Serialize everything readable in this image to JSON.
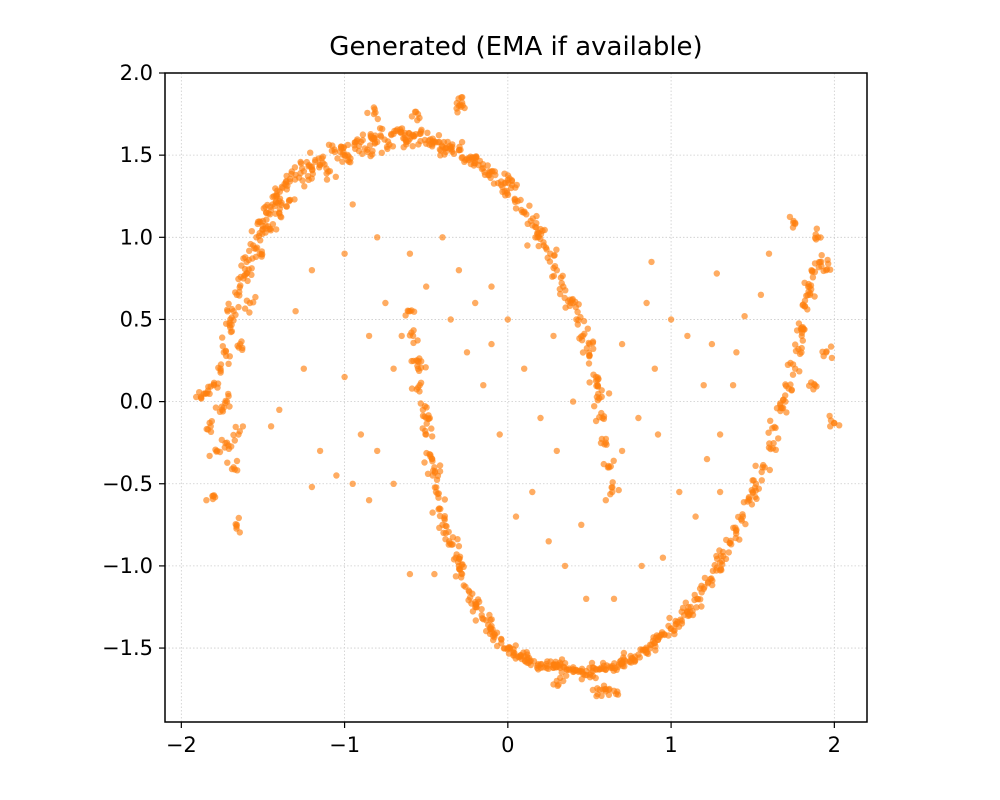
{
  "chart_data": {
    "type": "scatter",
    "title": "Generated (EMA if available)",
    "xlabel": "",
    "ylabel": "",
    "xlim": [
      -2.1,
      2.2
    ],
    "ylim": [
      -1.95,
      2.0
    ],
    "x_ticks": [
      -2,
      -1,
      0,
      1,
      2
    ],
    "x_tick_labels": [
      "−2",
      "−1",
      "0",
      "1",
      "2"
    ],
    "y_ticks": [
      -1.5,
      -1.0,
      -0.5,
      0.0,
      0.5,
      1.0,
      1.5,
      2.0
    ],
    "y_tick_labels": [
      "−1.5",
      "−1.0",
      "−0.5",
      "0.0",
      "0.5",
      "1.0",
      "1.5",
      "2.0"
    ],
    "grid": true,
    "legend": "none",
    "color": "#ff7f0e",
    "point_alpha": 0.65,
    "series": [
      {
        "points": [
          [
            -1.85,
            0.05
          ],
          [
            -1.82,
            -0.15
          ],
          [
            -1.8,
            0.1
          ],
          [
            -1.78,
            -0.3
          ],
          [
            -1.76,
            0.2
          ],
          [
            -1.74,
            0.3
          ],
          [
            -1.72,
            0.0
          ],
          [
            -1.7,
            0.45
          ],
          [
            -1.68,
            0.55
          ],
          [
            -1.66,
            0.65
          ],
          [
            -1.64,
            0.35
          ],
          [
            -1.62,
            0.75
          ],
          [
            -1.6,
            0.85
          ],
          [
            -1.58,
            0.6
          ],
          [
            -1.56,
            0.95
          ],
          [
            -1.54,
            1.0
          ],
          [
            -1.52,
            0.9
          ],
          [
            -1.5,
            1.1
          ],
          [
            -1.48,
            1.15
          ],
          [
            -1.46,
            1.05
          ],
          [
            -1.44,
            1.2
          ],
          [
            -1.42,
            1.25
          ],
          [
            -1.4,
            1.15
          ],
          [
            -1.38,
            1.3
          ],
          [
            -1.36,
            1.32
          ],
          [
            -1.34,
            1.22
          ],
          [
            -1.3,
            1.38
          ],
          [
            -1.26,
            1.42
          ],
          [
            -1.22,
            1.35
          ],
          [
            -1.18,
            1.46
          ],
          [
            -1.14,
            1.48
          ],
          [
            -1.1,
            1.4
          ],
          [
            -1.06,
            1.52
          ],
          [
            -1.02,
            1.55
          ],
          [
            -0.98,
            1.47
          ],
          [
            -0.94,
            1.56
          ],
          [
            -0.9,
            1.58
          ],
          [
            -0.86,
            1.52
          ],
          [
            -0.82,
            1.6
          ],
          [
            -0.78,
            1.62
          ],
          [
            -0.74,
            1.55
          ],
          [
            -0.7,
            1.63
          ],
          [
            -0.66,
            1.64
          ],
          [
            -0.62,
            1.58
          ],
          [
            -0.58,
            1.62
          ],
          [
            -0.54,
            1.63
          ],
          [
            -0.5,
            1.57
          ],
          [
            -0.46,
            1.6
          ],
          [
            -0.42,
            1.58
          ],
          [
            -0.38,
            1.52
          ],
          [
            -0.34,
            1.55
          ],
          [
            -0.3,
            1.53
          ],
          [
            -0.26,
            1.47
          ],
          [
            -0.22,
            1.48
          ],
          [
            -0.18,
            1.44
          ],
          [
            -0.14,
            1.38
          ],
          [
            -0.1,
            1.4
          ],
          [
            -0.06,
            1.33
          ],
          [
            -0.02,
            1.28
          ],
          [
            0.02,
            1.3
          ],
          [
            0.06,
            1.22
          ],
          [
            0.1,
            1.15
          ],
          [
            0.14,
            1.1
          ],
          [
            0.18,
            1.02
          ],
          [
            0.22,
            0.95
          ],
          [
            0.26,
            0.9
          ],
          [
            0.3,
            0.8
          ],
          [
            0.34,
            0.7
          ],
          [
            0.38,
            0.62
          ],
          [
            0.42,
            0.5
          ],
          [
            0.46,
            0.4
          ],
          [
            0.5,
            0.28
          ],
          [
            0.54,
            0.15
          ],
          [
            0.56,
            0.02
          ],
          [
            0.58,
            -0.1
          ],
          [
            0.6,
            -0.25
          ],
          [
            0.62,
            -0.4
          ],
          [
            0.64,
            -0.55
          ],
          [
            -1.7,
            0.5
          ],
          [
            -1.6,
            0.78
          ],
          [
            -1.5,
            1.05
          ],
          [
            -1.4,
            1.22
          ],
          [
            -1.2,
            1.43
          ],
          [
            -1.0,
            1.5
          ],
          [
            -0.8,
            1.58
          ],
          [
            -0.6,
            1.6
          ],
          [
            -0.4,
            1.55
          ],
          [
            -0.2,
            1.45
          ],
          [
            0.0,
            1.35
          ],
          [
            0.2,
            1.05
          ],
          [
            0.4,
            0.6
          ],
          [
            0.5,
            0.35
          ],
          [
            0.55,
            0.1
          ],
          [
            -1.75,
            -0.05
          ],
          [
            -1.72,
            -0.25
          ],
          [
            -1.68,
            -0.4
          ],
          [
            -1.65,
            -0.2
          ],
          [
            -1.66,
            -0.75
          ],
          [
            -1.8,
            -0.57
          ],
          [
            -1.88,
            0.03
          ],
          [
            -0.28,
            1.82
          ],
          [
            -0.3,
            1.8
          ],
          [
            -0.55,
            1.75
          ],
          [
            -0.82,
            1.75
          ]
        ]
      },
      {
        "points": [
          [
            -0.6,
            0.55
          ],
          [
            -0.58,
            0.4
          ],
          [
            -0.56,
            0.25
          ],
          [
            -0.54,
            0.1
          ],
          [
            -0.52,
            -0.05
          ],
          [
            -0.5,
            -0.2
          ],
          [
            -0.48,
            -0.32
          ],
          [
            -0.46,
            -0.45
          ],
          [
            -0.44,
            -0.55
          ],
          [
            -0.42,
            -0.65
          ],
          [
            -0.4,
            -0.75
          ],
          [
            -0.36,
            -0.85
          ],
          [
            -0.32,
            -0.95
          ],
          [
            -0.28,
            -1.05
          ],
          [
            -0.24,
            -1.15
          ],
          [
            -0.2,
            -1.22
          ],
          [
            -0.16,
            -1.3
          ],
          [
            -0.12,
            -1.36
          ],
          [
            -0.08,
            -1.42
          ],
          [
            -0.04,
            -1.47
          ],
          [
            0.0,
            -1.5
          ],
          [
            0.04,
            -1.53
          ],
          [
            0.08,
            -1.55
          ],
          [
            0.12,
            -1.57
          ],
          [
            0.16,
            -1.58
          ],
          [
            0.2,
            -1.6
          ],
          [
            0.24,
            -1.61
          ],
          [
            0.28,
            -1.62
          ],
          [
            0.32,
            -1.62
          ],
          [
            0.36,
            -1.63
          ],
          [
            0.4,
            -1.63
          ],
          [
            0.44,
            -1.64
          ],
          [
            0.48,
            -1.64
          ],
          [
            0.52,
            -1.64
          ],
          [
            0.56,
            -1.63
          ],
          [
            0.6,
            -1.63
          ],
          [
            0.64,
            -1.62
          ],
          [
            0.68,
            -1.6
          ],
          [
            0.72,
            -1.58
          ],
          [
            0.76,
            -1.56
          ],
          [
            0.8,
            -1.54
          ],
          [
            0.84,
            -1.51
          ],
          [
            0.88,
            -1.48
          ],
          [
            0.92,
            -1.45
          ],
          [
            0.96,
            -1.42
          ],
          [
            1.0,
            -1.38
          ],
          [
            1.04,
            -1.34
          ],
          [
            1.08,
            -1.3
          ],
          [
            1.12,
            -1.25
          ],
          [
            1.16,
            -1.2
          ],
          [
            1.2,
            -1.14
          ],
          [
            1.24,
            -1.08
          ],
          [
            1.28,
            -1.01
          ],
          [
            1.32,
            -0.94
          ],
          [
            1.36,
            -0.86
          ],
          [
            1.4,
            -0.78
          ],
          [
            1.44,
            -0.7
          ],
          [
            1.48,
            -0.6
          ],
          [
            1.52,
            -0.5
          ],
          [
            1.56,
            -0.4
          ],
          [
            1.6,
            -0.28
          ],
          [
            1.64,
            -0.16
          ],
          [
            1.68,
            -0.04
          ],
          [
            1.72,
            0.08
          ],
          [
            1.76,
            0.2
          ],
          [
            1.78,
            0.32
          ],
          [
            1.8,
            0.45
          ],
          [
            1.82,
            0.58
          ],
          [
            1.84,
            0.7
          ],
          [
            1.86,
            0.8
          ],
          [
            -0.55,
            0.2
          ],
          [
            -0.5,
            -0.1
          ],
          [
            -0.45,
            -0.4
          ],
          [
            -0.38,
            -0.8
          ],
          [
            -0.3,
            -1.0
          ],
          [
            -0.2,
            -1.25
          ],
          [
            -0.1,
            -1.4
          ],
          [
            0.1,
            -1.55
          ],
          [
            0.3,
            -1.6
          ],
          [
            0.5,
            -1.62
          ],
          [
            0.7,
            -1.59
          ],
          [
            0.9,
            -1.47
          ],
          [
            1.1,
            -1.28
          ],
          [
            1.3,
            -0.98
          ],
          [
            1.5,
            -0.55
          ],
          [
            1.7,
            0.0
          ],
          [
            1.8,
            0.4
          ],
          [
            1.85,
            0.65
          ],
          [
            0.55,
            -1.78
          ],
          [
            0.65,
            -1.76
          ],
          [
            0.3,
            -1.7
          ],
          [
            1.75,
            1.1
          ],
          [
            1.9,
            1.0
          ],
          [
            1.92,
            0.85
          ],
          [
            1.95,
            0.8
          ],
          [
            2.0,
            -0.13
          ],
          [
            1.95,
            0.3
          ],
          [
            1.88,
            0.1
          ],
          [
            0.6,
            -1.75
          ]
        ]
      },
      {
        "points": [
          [
            -0.95,
            1.2
          ],
          [
            -0.8,
            1.0
          ],
          [
            -0.6,
            0.9
          ],
          [
            -0.4,
            1.0
          ],
          [
            -0.3,
            0.8
          ],
          [
            -0.2,
            0.6
          ],
          [
            -0.1,
            0.7
          ],
          [
            0.0,
            0.5
          ],
          [
            -0.75,
            0.6
          ],
          [
            -0.85,
            0.4
          ],
          [
            -0.7,
            0.2
          ],
          [
            -1.2,
            0.8
          ],
          [
            -1.3,
            0.55
          ],
          [
            -1.0,
            0.15
          ],
          [
            -0.9,
            -0.2
          ],
          [
            -1.05,
            -0.45
          ],
          [
            -1.2,
            -0.52
          ],
          [
            -0.8,
            -0.3
          ],
          [
            -0.7,
            -0.5
          ],
          [
            -0.85,
            -0.6
          ],
          [
            0.1,
            0.2
          ],
          [
            0.2,
            -0.1
          ],
          [
            0.3,
            -0.3
          ],
          [
            0.15,
            -0.55
          ],
          [
            0.05,
            -0.7
          ],
          [
            0.25,
            -0.85
          ],
          [
            0.35,
            -1.0
          ],
          [
            0.45,
            -0.75
          ],
          [
            0.6,
            -0.6
          ],
          [
            0.7,
            -0.3
          ],
          [
            0.8,
            -0.1
          ],
          [
            0.9,
            0.2
          ],
          [
            1.0,
            0.5
          ],
          [
            1.1,
            0.4
          ],
          [
            1.2,
            0.1
          ],
          [
            1.3,
            -0.2
          ],
          [
            1.4,
            0.3
          ],
          [
            1.45,
            0.52
          ],
          [
            1.28,
            0.78
          ],
          [
            1.55,
            0.65
          ],
          [
            1.6,
            0.9
          ],
          [
            1.25,
            0.35
          ],
          [
            0.88,
            0.85
          ],
          [
            0.7,
            0.35
          ],
          [
            0.62,
            0.05
          ],
          [
            0.4,
            0.0
          ],
          [
            -0.05,
            -0.2
          ],
          [
            -0.15,
            0.1
          ],
          [
            -0.25,
            0.3
          ],
          [
            0.48,
            -1.2
          ],
          [
            -0.6,
            -1.05
          ],
          [
            -0.45,
            -1.05
          ],
          [
            -0.3,
            -0.88
          ],
          [
            1.15,
            -0.7
          ],
          [
            1.05,
            -0.55
          ],
          [
            0.95,
            -0.95
          ],
          [
            1.3,
            -0.55
          ],
          [
            0.82,
            -1.0
          ],
          [
            0.65,
            -1.2
          ],
          [
            0.92,
            -0.2
          ],
          [
            -0.5,
            0.7
          ],
          [
            -0.35,
            0.5
          ],
          [
            -1.0,
            0.9
          ],
          [
            -0.65,
            0.4
          ],
          [
            -1.25,
            0.2
          ],
          [
            -1.4,
            -0.05
          ],
          [
            -1.15,
            -0.3
          ],
          [
            -0.95,
            -0.5
          ],
          [
            -1.45,
            -0.15
          ],
          [
            0.12,
            0.95
          ],
          [
            -0.1,
            0.35
          ],
          [
            0.28,
            0.4
          ],
          [
            0.85,
            0.6
          ],
          [
            1.22,
            -0.35
          ],
          [
            1.38,
            0.1
          ]
        ]
      }
    ]
  }
}
